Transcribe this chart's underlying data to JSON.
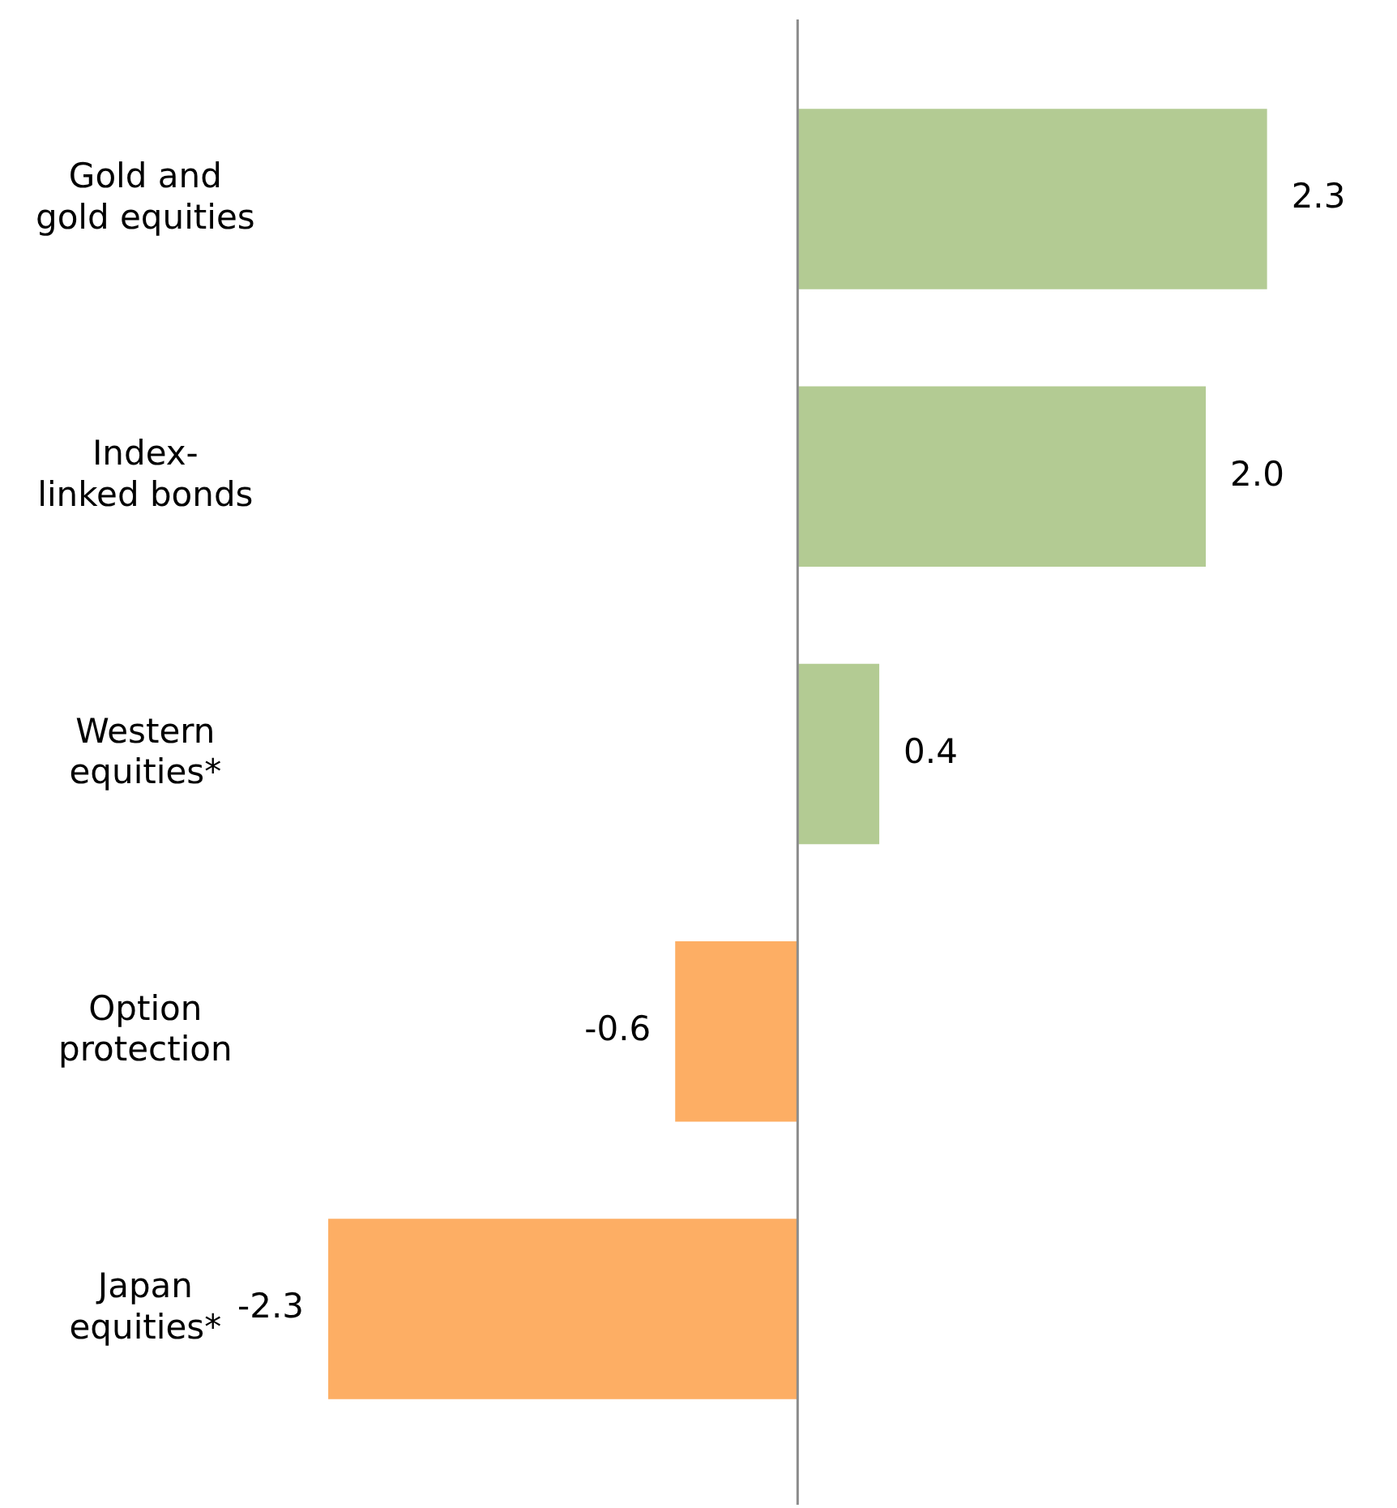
{
  "chart_data": {
    "type": "bar",
    "orientation": "horizontal",
    "categories": [
      "Gold and\ngold equities",
      "Index-\nlinked bonds",
      "Western\nequities*",
      "Option\nprotection",
      "Japan\nequities*"
    ],
    "values": [
      2.3,
      2.0,
      0.4,
      -0.6,
      -2.3
    ],
    "value_labels": [
      "2.3",
      "2.0",
      "0.4",
      "-0.6",
      "-2.3"
    ],
    "colors": [
      "#b3cb93",
      "#b3cb93",
      "#b3cb93",
      "#fdae64",
      "#fdae64"
    ],
    "grid": false,
    "legend": false
  }
}
